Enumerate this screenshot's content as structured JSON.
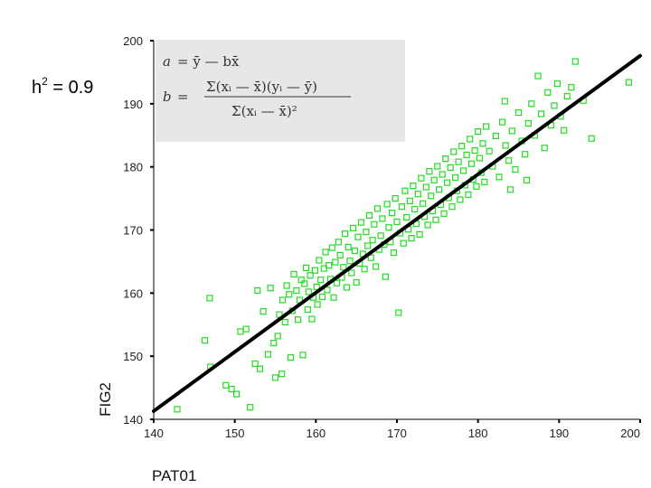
{
  "heritability": {
    "base": "h",
    "exp": "2",
    "rest": " = 0.9"
  },
  "formula": {
    "a_lhs": "a",
    "a_rhs": "= ȳ — bx̄",
    "b_lhs": "b",
    "b_eq": "=",
    "b_num": "Σ(xᵢ — x̄)(yᵢ — ȳ)",
    "b_den": "Σ(xᵢ — x̄)²"
  },
  "chart_data": {
    "type": "scatter",
    "xlabel": "PAT01",
    "ylabel": "FIG2",
    "xlim": [
      140,
      200
    ],
    "ylim": [
      140,
      200
    ],
    "xticks": [
      140,
      150,
      160,
      170,
      180,
      190,
      200
    ],
    "yticks": [
      140,
      150,
      160,
      170,
      180,
      190,
      200
    ],
    "grid": false,
    "marker_color": "#22dd22",
    "line_color": "#000000",
    "regression_line": {
      "x": [
        140,
        200
      ],
      "y": [
        141.3,
        197.6
      ]
    },
    "points": [
      [
        142.9,
        141.6
      ],
      [
        146.3,
        152.5
      ],
      [
        146.9,
        159.2
      ],
      [
        147.0,
        148.3
      ],
      [
        148.9,
        145.4
      ],
      [
        149.6,
        144.8
      ],
      [
        150.2,
        144.0
      ],
      [
        150.7,
        153.9
      ],
      [
        151.4,
        154.3
      ],
      [
        151.9,
        141.9
      ],
      [
        152.5,
        148.8
      ],
      [
        152.8,
        160.4
      ],
      [
        153.1,
        148.0
      ],
      [
        153.5,
        157.1
      ],
      [
        154.1,
        150.3
      ],
      [
        154.4,
        160.8
      ],
      [
        154.8,
        152.1
      ],
      [
        155.0,
        146.6
      ],
      [
        155.3,
        153.2
      ],
      [
        155.5,
        156.6
      ],
      [
        155.8,
        147.2
      ],
      [
        155.9,
        158.9
      ],
      [
        156.2,
        155.4
      ],
      [
        156.4,
        161.2
      ],
      [
        156.7,
        159.8
      ],
      [
        156.9,
        149.8
      ],
      [
        157.1,
        157.2
      ],
      [
        157.3,
        163.0
      ],
      [
        157.6,
        160.4
      ],
      [
        157.8,
        155.8
      ],
      [
        158.0,
        158.9
      ],
      [
        158.2,
        162.1
      ],
      [
        158.4,
        150.2
      ],
      [
        158.6,
        161.5
      ],
      [
        158.8,
        164.0
      ],
      [
        159.0,
        157.4
      ],
      [
        159.1,
        160.2
      ],
      [
        159.3,
        162.8
      ],
      [
        159.5,
        155.9
      ],
      [
        159.7,
        159.3
      ],
      [
        159.9,
        163.6
      ],
      [
        160.1,
        161.0
      ],
      [
        160.2,
        158.2
      ],
      [
        160.4,
        165.2
      ],
      [
        160.6,
        162.1
      ],
      [
        160.8,
        159.4
      ],
      [
        161.0,
        163.9
      ],
      [
        161.2,
        166.5
      ],
      [
        161.4,
        160.5
      ],
      [
        161.6,
        164.4
      ],
      [
        161.8,
        162.2
      ],
      [
        162.0,
        167.2
      ],
      [
        162.2,
        159.3
      ],
      [
        162.4,
        164.9
      ],
      [
        162.6,
        161.6
      ],
      [
        162.8,
        168.1
      ],
      [
        163.0,
        166.0
      ],
      [
        163.2,
        162.5
      ],
      [
        163.4,
        164.1
      ],
      [
        163.6,
        169.4
      ],
      [
        163.8,
        160.9
      ],
      [
        164.0,
        167.3
      ],
      [
        164.2,
        165.1
      ],
      [
        164.4,
        163.2
      ],
      [
        164.6,
        170.3
      ],
      [
        164.8,
        166.7
      ],
      [
        165.0,
        161.7
      ],
      [
        165.2,
        168.9
      ],
      [
        165.4,
        164.7
      ],
      [
        165.6,
        171.2
      ],
      [
        165.8,
        166.2
      ],
      [
        166.0,
        163.8
      ],
      [
        166.2,
        169.7
      ],
      [
        166.4,
        167.5
      ],
      [
        166.6,
        172.3
      ],
      [
        166.8,
        165.6
      ],
      [
        167.0,
        168.4
      ],
      [
        167.2,
        170.9
      ],
      [
        167.4,
        164.2
      ],
      [
        167.6,
        173.4
      ],
      [
        167.8,
        166.9
      ],
      [
        168.0,
        169.1
      ],
      [
        168.2,
        171.8
      ],
      [
        168.4,
        167.7
      ],
      [
        168.6,
        162.6
      ],
      [
        168.8,
        174.1
      ],
      [
        169.0,
        170.4
      ],
      [
        169.2,
        168.1
      ],
      [
        169.4,
        172.7
      ],
      [
        169.6,
        166.4
      ],
      [
        169.8,
        175.0
      ],
      [
        170.0,
        171.3
      ],
      [
        170.2,
        156.9
      ],
      [
        170.4,
        169.5
      ],
      [
        170.6,
        173.7
      ],
      [
        170.8,
        167.9
      ],
      [
        171.0,
        176.2
      ],
      [
        171.2,
        172.0
      ],
      [
        171.4,
        170.1
      ],
      [
        171.6,
        174.6
      ],
      [
        171.8,
        168.7
      ],
      [
        172.0,
        177.0
      ],
      [
        172.2,
        173.3
      ],
      [
        172.4,
        171.0
      ],
      [
        172.6,
        175.7
      ],
      [
        172.8,
        169.3
      ],
      [
        173.0,
        178.2
      ],
      [
        173.2,
        174.2
      ],
      [
        173.4,
        172.1
      ],
      [
        173.6,
        176.8
      ],
      [
        173.8,
        170.8
      ],
      [
        174.0,
        179.3
      ],
      [
        174.2,
        175.4
      ],
      [
        174.4,
        173.0
      ],
      [
        174.6,
        177.9
      ],
      [
        174.8,
        171.6
      ],
      [
        175.0,
        180.1
      ],
      [
        175.2,
        176.4
      ],
      [
        175.4,
        174.0
      ],
      [
        175.6,
        178.8
      ],
      [
        175.8,
        172.6
      ],
      [
        176.0,
        181.3
      ],
      [
        176.2,
        177.5
      ],
      [
        176.4,
        175.1
      ],
      [
        176.6,
        179.9
      ],
      [
        176.8,
        173.7
      ],
      [
        177.0,
        182.4
      ],
      [
        177.2,
        178.3
      ],
      [
        177.4,
        176.2
      ],
      [
        177.6,
        180.8
      ],
      [
        177.8,
        174.8
      ],
      [
        178.0,
        183.3
      ],
      [
        178.2,
        179.4
      ],
      [
        178.4,
        177.1
      ],
      [
        178.6,
        181.9
      ],
      [
        178.8,
        175.6
      ],
      [
        179.0,
        184.4
      ],
      [
        179.2,
        180.5
      ],
      [
        179.4,
        178.0
      ],
      [
        179.6,
        182.6
      ],
      [
        179.8,
        176.9
      ],
      [
        180.0,
        185.6
      ],
      [
        180.2,
        181.4
      ],
      [
        180.4,
        179.1
      ],
      [
        180.6,
        183.7
      ],
      [
        180.8,
        177.6
      ],
      [
        181.0,
        186.4
      ],
      [
        181.4,
        182.5
      ],
      [
        181.8,
        180.1
      ],
      [
        182.2,
        184.9
      ],
      [
        182.6,
        178.4
      ],
      [
        183.0,
        187.1
      ],
      [
        183.4,
        183.4
      ],
      [
        183.8,
        181.0
      ],
      [
        184.2,
        185.7
      ],
      [
        184.6,
        179.6
      ],
      [
        185.0,
        188.6
      ],
      [
        185.4,
        184.1
      ],
      [
        185.8,
        182.0
      ],
      [
        186.2,
        186.9
      ],
      [
        186.6,
        190.0
      ],
      [
        187.0,
        185.0
      ],
      [
        187.4,
        194.4
      ],
      [
        187.8,
        188.4
      ],
      [
        188.2,
        183.0
      ],
      [
        188.6,
        191.8
      ],
      [
        189.0,
        186.6
      ],
      [
        189.4,
        189.7
      ],
      [
        189.8,
        193.2
      ],
      [
        190.2,
        188.0
      ],
      [
        190.6,
        185.8
      ],
      [
        191.0,
        191.2
      ],
      [
        191.5,
        192.6
      ],
      [
        192.0,
        196.7
      ],
      [
        193.0,
        190.5
      ],
      [
        194.0,
        184.5
      ],
      [
        198.6,
        193.4
      ],
      [
        184.0,
        176.4
      ],
      [
        186.0,
        177.9
      ],
      [
        183.3,
        190.4
      ]
    ]
  }
}
